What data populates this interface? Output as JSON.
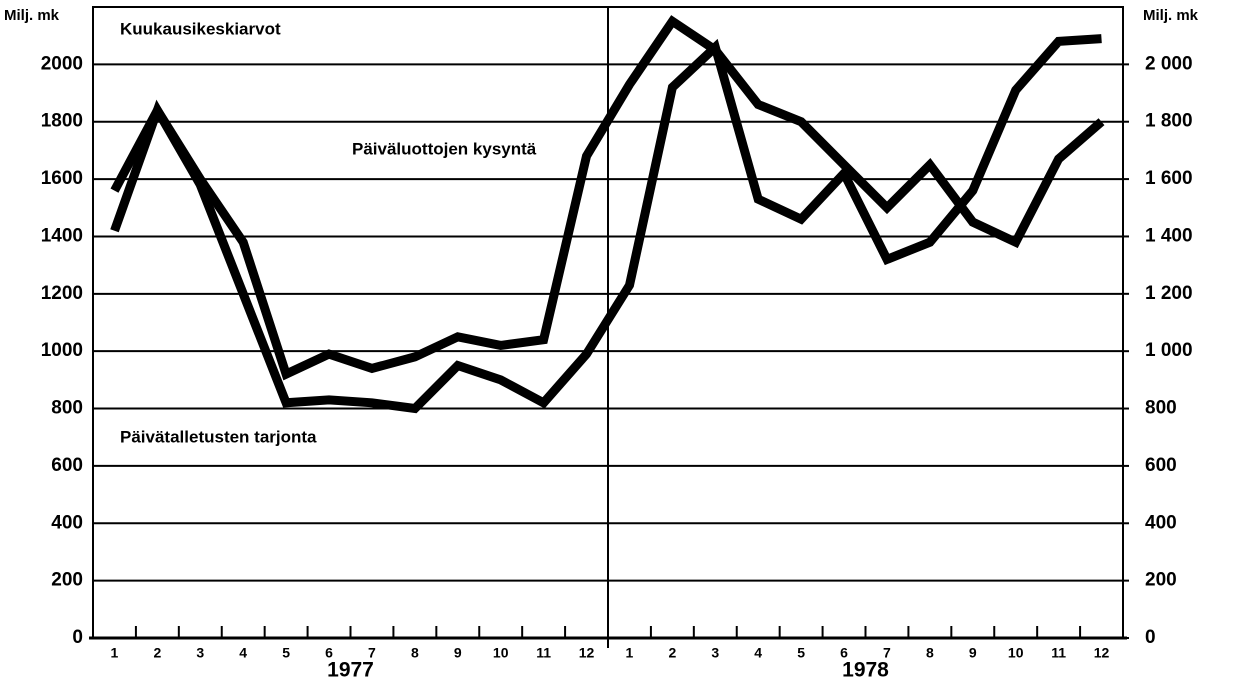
{
  "chart_data": {
    "type": "line",
    "y_label": "Milj. mk",
    "y2_label": "Milj. mk",
    "annotations": [
      "Kuukausikeskiarvot"
    ],
    "categories": [
      "1",
      "2",
      "3",
      "4",
      "5",
      "6",
      "7",
      "8",
      "9",
      "10",
      "11",
      "12",
      "1",
      "2",
      "3",
      "4",
      "5",
      "6",
      "7",
      "8",
      "9",
      "10",
      "11",
      "12"
    ],
    "years": [
      "1977",
      "1978"
    ],
    "series": [
      {
        "name": "Päiväluottojen kysyntä",
        "color": "#000000",
        "values": [
          1560,
          1840,
          1600,
          1380,
          920,
          990,
          940,
          980,
          1050,
          1020,
          1040,
          1680,
          1930,
          2150,
          2050,
          1860,
          1800,
          1650,
          1500,
          1650,
          1450,
          1380,
          1670,
          1800
        ]
      },
      {
        "name": "Päivätalletusten tarjonta",
        "color": "#000000",
        "values": [
          1420,
          1840,
          1580,
          1200,
          820,
          830,
          820,
          800,
          950,
          900,
          820,
          990,
          1230,
          1920,
          2060,
          1530,
          1460,
          1620,
          1320,
          1380,
          1560,
          1910,
          2080,
          2090
        ]
      }
    ],
    "ylim": [
      0,
      2200
    ],
    "yticks": [
      0,
      200,
      400,
      600,
      800,
      1000,
      1200,
      1400,
      1600,
      1800,
      2000
    ],
    "y2lim": [
      0,
      2200
    ],
    "y2ticks": [
      0,
      200,
      400,
      600,
      800,
      {
        "value": 1000,
        "label": "1 000"
      },
      {
        "value": 1200,
        "label": "1 200"
      },
      {
        "value": 1400,
        "label": "1 400"
      },
      {
        "value": 1600,
        "label": "1 600"
      },
      {
        "value": 1800,
        "label": "1 800"
      },
      {
        "value": 2000,
        "label": "2 000"
      }
    ],
    "grid": true
  }
}
